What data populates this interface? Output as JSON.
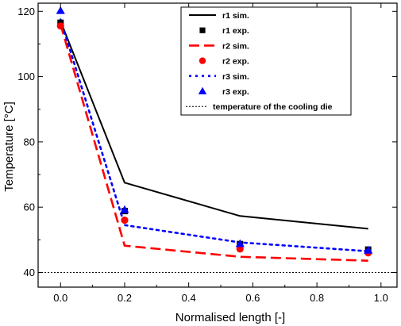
{
  "chart_data": {
    "type": "line",
    "xlabel": "Normalised length [-]",
    "ylabel": "Temperature [°C]",
    "xlim": [
      -0.07,
      1.05
    ],
    "ylim": [
      35.5,
      122.5
    ],
    "xticks": [
      0.0,
      0.2,
      0.4,
      0.6,
      0.8,
      1.0
    ],
    "xtick_labels": [
      "0.0",
      "0.2",
      "0.4",
      "0.6",
      "0.8",
      "1.0"
    ],
    "yticks": [
      40,
      60,
      80,
      100,
      120
    ],
    "ytick_labels": [
      "40",
      "60",
      "80",
      "100",
      "120"
    ],
    "grid": false,
    "legend_position": "top-right",
    "series": [
      {
        "name": "r1 sim.",
        "kind": "line",
        "style": "solid",
        "color": "#000000",
        "x": [
          0.0,
          0.2,
          0.56,
          0.96
        ],
        "y": [
          117.0,
          67.5,
          57.3,
          53.4
        ]
      },
      {
        "name": "r1 exp.",
        "kind": "marker",
        "marker": "square",
        "color": "#000000",
        "x": [
          0.0,
          0.2,
          0.56,
          0.96
        ],
        "y": [
          116.5,
          58.8,
          48.7,
          47.0
        ]
      },
      {
        "name": "r2 sim.",
        "kind": "line",
        "style": "dashed",
        "color": "#ff0000",
        "x": [
          0.0,
          0.2,
          0.56,
          0.96
        ],
        "y": [
          116.0,
          48.2,
          44.8,
          43.6
        ]
      },
      {
        "name": "r2 exp.",
        "kind": "marker",
        "marker": "circle",
        "color": "#ff0000",
        "x": [
          0.0,
          0.2,
          0.56,
          0.96
        ],
        "y": [
          115.5,
          56.0,
          47.2,
          46.0
        ]
      },
      {
        "name": "r3 sim.",
        "kind": "line",
        "style": "dotted",
        "color": "#0000ff",
        "x": [
          0.0,
          0.2,
          0.56,
          0.96
        ],
        "y": [
          117.5,
          54.5,
          49.2,
          46.5
        ]
      },
      {
        "name": "r3 exp.",
        "kind": "marker",
        "marker": "triangle",
        "color": "#0000ff",
        "x": [
          0.0,
          0.2,
          0.56,
          0.96
        ],
        "y": [
          120.2,
          59.2,
          48.8,
          46.8
        ]
      },
      {
        "name": "temperature of the cooling die",
        "kind": "hline",
        "style": "dotted-thin",
        "color": "#000000",
        "y": 40
      }
    ]
  }
}
